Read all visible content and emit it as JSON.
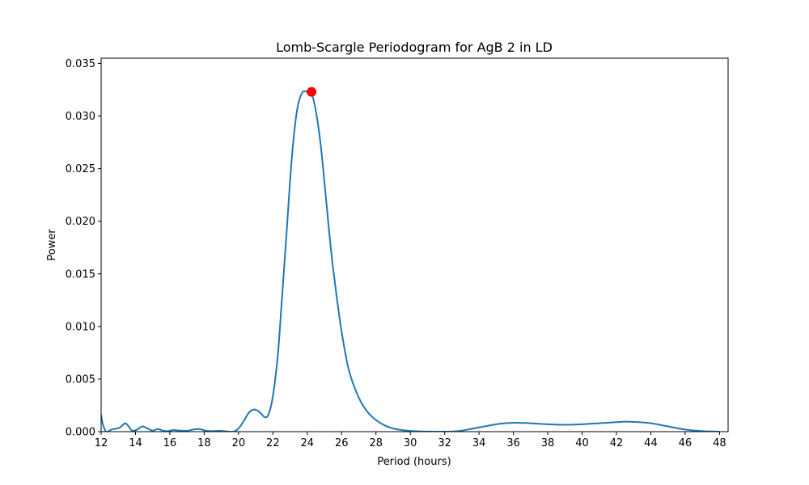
{
  "chart_data": {
    "type": "line",
    "title": "Lomb-Scargle Periodogram for AgB 2 in LD",
    "xlabel": "Period (hours)",
    "ylabel": "Power",
    "xlim": [
      12,
      48.5
    ],
    "ylim": [
      0,
      0.0355
    ],
    "xticks": [
      12,
      14,
      16,
      18,
      20,
      22,
      24,
      26,
      28,
      30,
      32,
      34,
      36,
      38,
      40,
      42,
      44,
      46,
      48
    ],
    "xtick_labels": [
      "12",
      "14",
      "16",
      "18",
      "20",
      "22",
      "24",
      "26",
      "28",
      "30",
      "32",
      "34",
      "36",
      "38",
      "40",
      "42",
      "44",
      "46",
      "48"
    ],
    "yticks": [
      0,
      0.005,
      0.01,
      0.015,
      0.02,
      0.025,
      0.03,
      0.035
    ],
    "ytick_labels": [
      "0.000",
      "0.005",
      "0.010",
      "0.015",
      "0.020",
      "0.025",
      "0.030",
      "0.035"
    ],
    "grid": false,
    "series": [
      {
        "color": "#1f77b4",
        "x": [
          12.0,
          12.1,
          12.3,
          12.6,
          12.9,
          13.1,
          13.4,
          13.6,
          13.8,
          14.1,
          14.4,
          14.7,
          15.0,
          15.3,
          15.6,
          15.9,
          16.2,
          16.6,
          17.0,
          17.3,
          17.7,
          18.1,
          18.5,
          18.9,
          19.3,
          19.7,
          20.0,
          20.3,
          20.6,
          20.9,
          21.2,
          21.5,
          21.7,
          21.9,
          22.1,
          22.3,
          22.5,
          22.8,
          23.1,
          23.4,
          23.7,
          24.0,
          24.25,
          24.5,
          24.8,
          25.1,
          25.4,
          25.7,
          26.0,
          26.4,
          26.8,
          27.2,
          27.6,
          28.0,
          28.5,
          29.0,
          29.5,
          30.0,
          30.5,
          31.0,
          31.5,
          32.0,
          32.5,
          33.0,
          33.5,
          34.0,
          34.5,
          35.0,
          35.5,
          36.0,
          36.5,
          37.0,
          38.0,
          39.0,
          40.0,
          41.0,
          42.0,
          42.5,
          43.0,
          44.0,
          45.0,
          46.0,
          47.0,
          48.0
        ],
        "y": [
          0.0016,
          0.0007,
          0.0,
          0.0002,
          0.0003,
          0.0004,
          0.0008,
          0.0005,
          0.0001,
          0.0002,
          0.0005,
          0.0003,
          0.0001,
          0.00025,
          0.0001,
          5e-05,
          0.00015,
          0.0001,
          8e-05,
          0.00018,
          0.00025,
          0.0001,
          5e-05,
          8e-05,
          3e-05,
          0.0,
          0.0003,
          0.001,
          0.0018,
          0.0021,
          0.0019,
          0.0014,
          0.0015,
          0.0025,
          0.0045,
          0.0075,
          0.012,
          0.019,
          0.026,
          0.0305,
          0.0322,
          0.0323,
          0.0321,
          0.0305,
          0.027,
          0.022,
          0.017,
          0.013,
          0.0095,
          0.006,
          0.004,
          0.0026,
          0.0017,
          0.0011,
          0.0006,
          0.0003,
          0.00015,
          7e-05,
          3e-05,
          1e-05,
          0.0,
          0.0,
          2e-05,
          0.0001,
          0.00025,
          0.0004,
          0.00055,
          0.0007,
          0.0008,
          0.00085,
          0.00083,
          0.0008,
          0.0007,
          0.00065,
          0.0007,
          0.0008,
          0.0009,
          0.00095,
          0.00093,
          0.0008,
          0.0005,
          0.0002,
          5e-05,
          0.0
        ]
      }
    ],
    "peak": {
      "x": 24.25,
      "y": 0.0323,
      "color": "#ff0000"
    }
  }
}
